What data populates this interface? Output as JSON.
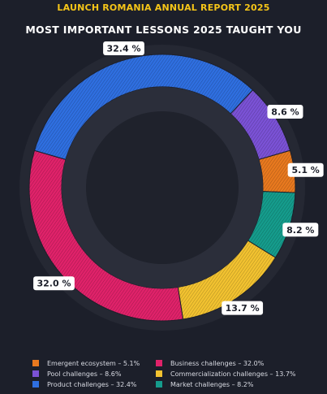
{
  "header": {
    "report_title": "LAUNCH ROMANIA ANNUAL REPORT 2025"
  },
  "chart_data": {
    "type": "pie",
    "variant": "donut",
    "title": "MOST IMPORTANT LESSONS 2025 TAUGHT YOU",
    "start_angle_deg": 171,
    "slices": [
      {
        "name": "Business challenges",
        "value": 32.0,
        "label": "32.0 %",
        "legend": "Business challenges – 32.0%",
        "color": "#e0226a"
      },
      {
        "name": "Product challenges",
        "value": 32.4,
        "label": "32.4 %",
        "legend": "Product challenges – 32.4%",
        "color": "#2f6fe0"
      },
      {
        "name": "Pool challenges",
        "value": 8.6,
        "label": "8.6 %",
        "legend": "Pool challenges – 8.6%",
        "color": "#7b52d6"
      },
      {
        "name": "Emergent ecosystem",
        "value": 5.1,
        "label": "5.1 %",
        "legend": "Emergent ecosystem – 5.1%",
        "color": "#e8791f"
      },
      {
        "name": "Market challenges",
        "value": 8.2,
        "label": "8.2 %",
        "legend": "Market challenges – 8.2%",
        "color": "#159c8c"
      },
      {
        "name": "Commercialization challenges",
        "value": 13.7,
        "label": "13.7 %",
        "legend": "Commercialization challenges – 13.7%",
        "color": "#f2c230"
      }
    ],
    "legend_order": [
      3,
      0,
      2,
      5,
      1,
      4
    ],
    "legend_placement": "bottom"
  }
}
